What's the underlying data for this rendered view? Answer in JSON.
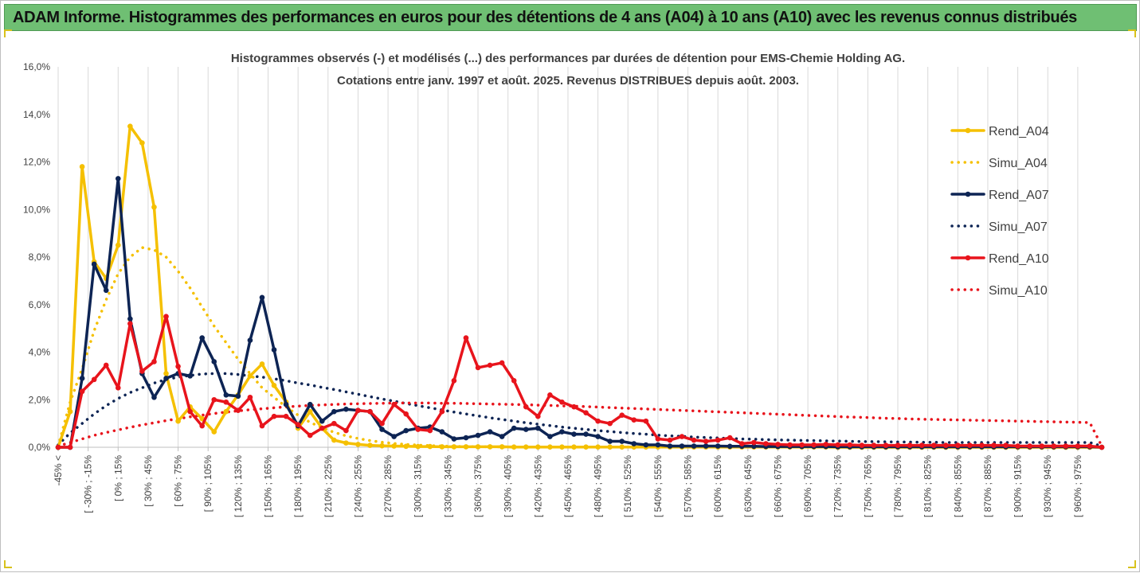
{
  "header": {
    "banner_title": "ADAM Informe. Histogrammes des performances en euros pour des détentions de 4 ans (A04) à 10 ans (A10) avec les revenus connus distribués"
  },
  "chart_data": {
    "type": "line",
    "title_line1": "Histogrammes observés (-)  et modélisés (...) des performances par durées de détention pour EMS-Chemie Holding AG.",
    "title_line2": "Cotations entre janv. 1997 et août. 2025. Revenus DISTRIBUES depuis août. 2003.",
    "ylim": [
      0,
      16
    ],
    "y_ticks": [
      "0,0%",
      "2,0%",
      "4,0%",
      "6,0%",
      "8,0%",
      "10,0%",
      "12,0%",
      "14,0%",
      "16,0%"
    ],
    "grid": "vertical",
    "legend_position": "right",
    "x_tick_labels": [
      "-45% <",
      "[ -30% ; -15%",
      "[ 0% ; 15%",
      "[ 30% ; 45%",
      "[ 60% ; 75%",
      "[ 90% ; 105%",
      "[ 120% ; 135%",
      "[ 150% ; 165%",
      "[ 180% ; 195%",
      "[ 210% ; 225%",
      "[ 240% ; 255%",
      "[ 270% ; 285%",
      "[ 300% ; 315%",
      "[ 330% ; 345%",
      "[ 360% ; 375%",
      "[ 390% ; 405%",
      "[ 420% ; 435%",
      "[ 450% ; 465%",
      "[ 480% ; 495%",
      "[ 510% ; 525%",
      "[ 540% ; 555%",
      "[ 570% ; 585%",
      "[ 600% ; 615%",
      "[ 630% ; 645%",
      "[ 660% ; 675%",
      "[ 690% ; 705%",
      "[ 720% ; 735%",
      "[ 750% ; 765%",
      "[ 780% ; 795%",
      "[ 810% ; 825%",
      "[ 840% ; 855%",
      "[ 870% ; 885%",
      "[ 900% ; 915%",
      "[ 930% ; 945%",
      "[ 960% ; 975%"
    ],
    "series": [
      {
        "name": "Rend_A04",
        "color": "#f5c000",
        "style": "solid",
        "values": [
          0,
          1.5,
          11.8,
          7.8,
          7.1,
          8.5,
          13.5,
          12.8,
          10.1,
          3.1,
          1.1,
          1.7,
          1.2,
          0.65,
          1.5,
          2.2,
          3.0,
          3.5,
          2.6,
          1.9,
          0.8,
          1.5,
          0.8,
          0.3,
          0.18,
          0.12,
          0.08,
          0.06,
          0.05,
          0.04,
          0.03,
          0.03,
          0.02,
          0.02,
          0.02,
          0.02,
          0.02,
          0.02,
          0.01,
          0.01,
          0.01,
          0.01,
          0.01,
          0.01,
          0.01,
          0.01,
          0.01,
          0.01,
          0.01,
          0.01,
          0.01,
          0.01,
          0.01,
          0.01,
          0.01,
          0.01,
          0.01,
          0.01,
          0.01,
          0.01,
          0.01,
          0.01,
          0.01,
          0.01,
          0.01,
          0,
          0,
          0,
          0,
          0,
          0,
          0,
          0,
          0,
          0,
          0,
          0,
          0,
          0,
          0,
          0,
          0,
          0,
          0,
          0,
          0,
          0,
          0
        ]
      },
      {
        "name": "Simu_A04",
        "color": "#f5c000",
        "style": "dotted",
        "values": [
          0.05,
          1.9,
          3.3,
          4.9,
          6.2,
          7.3,
          8.0,
          8.4,
          8.3,
          8.0,
          7.4,
          6.7,
          5.9,
          5.1,
          4.4,
          3.7,
          3.1,
          2.5,
          2.1,
          1.7,
          1.35,
          1.05,
          0.82,
          0.63,
          0.48,
          0.37,
          0.28,
          0.21,
          0.16,
          0.12,
          0.09,
          0.07,
          0.05,
          0.04,
          0.03,
          0.02,
          0.02,
          0.015,
          0.01,
          0.01,
          0.01,
          0.01,
          0.01,
          0.01,
          0.01,
          0.01,
          0.01,
          0.01,
          0.01,
          0.01,
          0.01,
          0.01,
          0.01,
          0.01,
          0.01,
          0.01,
          0.01,
          0.01,
          0.01,
          0.01,
          0.01,
          0.01,
          0.01,
          0.01,
          0.01,
          0,
          0,
          0,
          0,
          0,
          0,
          0,
          0,
          0,
          0,
          0,
          0,
          0,
          0,
          0,
          0,
          0,
          0,
          0,
          0,
          0,
          0,
          0
        ]
      },
      {
        "name": "Rend_A07",
        "color": "#0d2454",
        "style": "solid",
        "values": [
          0,
          0,
          2.9,
          7.7,
          6.6,
          11.3,
          5.4,
          3.1,
          2.1,
          2.9,
          3.1,
          3.0,
          4.6,
          3.6,
          2.2,
          2.15,
          4.5,
          6.3,
          4.1,
          1.8,
          0.9,
          1.8,
          1.1,
          1.5,
          1.6,
          1.55,
          1.5,
          0.75,
          0.45,
          0.7,
          0.8,
          0.85,
          0.65,
          0.35,
          0.4,
          0.5,
          0.65,
          0.45,
          0.8,
          0.75,
          0.8,
          0.45,
          0.65,
          0.55,
          0.55,
          0.45,
          0.25,
          0.25,
          0.15,
          0.1,
          0.1,
          0.05,
          0.05,
          0.05,
          0.05,
          0.05,
          0.04,
          0.04,
          0.04,
          0.03,
          0.03,
          0.03,
          0.03,
          0.03,
          0.03,
          0.02,
          0.02,
          0.02,
          0.02,
          0.02,
          0.02,
          0.02,
          0.02,
          0.02,
          0.02,
          0.02,
          0.02,
          0.02,
          0.02,
          0.02,
          0.02,
          0.02,
          0.02,
          0.02,
          0.02,
          0.02,
          0.02,
          0
        ]
      },
      {
        "name": "Simu_A07",
        "color": "#0d2454",
        "style": "dotted",
        "values": [
          0.1,
          0.6,
          1.0,
          1.4,
          1.75,
          2.05,
          2.3,
          2.5,
          2.7,
          2.85,
          2.95,
          3.02,
          3.08,
          3.1,
          3.1,
          3.06,
          3.0,
          2.95,
          2.88,
          2.8,
          2.7,
          2.62,
          2.52,
          2.43,
          2.33,
          2.23,
          2.13,
          2.03,
          1.94,
          1.84,
          1.75,
          1.66,
          1.57,
          1.48,
          1.4,
          1.32,
          1.24,
          1.17,
          1.1,
          1.03,
          0.97,
          0.91,
          0.85,
          0.8,
          0.75,
          0.7,
          0.66,
          0.62,
          0.58,
          0.55,
          0.51,
          0.48,
          0.46,
          0.43,
          0.41,
          0.39,
          0.37,
          0.35,
          0.34,
          0.32,
          0.31,
          0.3,
          0.29,
          0.28,
          0.27,
          0.26,
          0.25,
          0.24,
          0.24,
          0.23,
          0.22,
          0.22,
          0.21,
          0.21,
          0.2,
          0.2,
          0.2,
          0.2,
          0.2,
          0.2,
          0.2,
          0.2,
          0.2,
          0.2,
          0.2,
          0.2,
          0.2,
          0.05
        ]
      },
      {
        "name": "Rend_A10",
        "color": "#e8141c",
        "style": "solid",
        "values": [
          0,
          0,
          2.35,
          2.85,
          3.45,
          2.5,
          5.2,
          3.2,
          3.6,
          5.5,
          3.4,
          1.5,
          0.9,
          2.0,
          1.9,
          1.55,
          2.1,
          0.9,
          1.3,
          1.3,
          0.95,
          0.5,
          0.8,
          1.0,
          0.7,
          1.55,
          1.5,
          1.0,
          1.8,
          1.4,
          0.75,
          0.7,
          1.5,
          2.8,
          4.6,
          3.35,
          3.45,
          3.55,
          2.8,
          1.7,
          1.3,
          2.2,
          1.9,
          1.7,
          1.45,
          1.1,
          1.0,
          1.35,
          1.15,
          1.1,
          0.35,
          0.3,
          0.45,
          0.3,
          0.25,
          0.3,
          0.4,
          0.15,
          0.2,
          0.15,
          0.12,
          0.1,
          0.1,
          0.1,
          0.12,
          0.1,
          0.1,
          0.08,
          0.08,
          0.08,
          0.08,
          0.08,
          0.08,
          0.08,
          0.08,
          0.08,
          0.08,
          0.08,
          0.08,
          0.08,
          0.05,
          0.05,
          0.05,
          0.05,
          0.05,
          0.05,
          0.05,
          0
        ]
      },
      {
        "name": "Simu_A10",
        "color": "#e8141c",
        "style": "dotted",
        "values": [
          0.05,
          0.2,
          0.35,
          0.5,
          0.62,
          0.73,
          0.84,
          0.94,
          1.03,
          1.12,
          1.2,
          1.28,
          1.35,
          1.42,
          1.48,
          1.53,
          1.58,
          1.62,
          1.66,
          1.7,
          1.73,
          1.76,
          1.78,
          1.8,
          1.82,
          1.83,
          1.84,
          1.85,
          1.86,
          1.86,
          1.86,
          1.86,
          1.85,
          1.85,
          1.84,
          1.83,
          1.82,
          1.81,
          1.8,
          1.79,
          1.77,
          1.76,
          1.74,
          1.73,
          1.71,
          1.69,
          1.67,
          1.65,
          1.63,
          1.61,
          1.59,
          1.57,
          1.55,
          1.53,
          1.51,
          1.49,
          1.47,
          1.45,
          1.43,
          1.41,
          1.39,
          1.37,
          1.35,
          1.33,
          1.31,
          1.29,
          1.27,
          1.26,
          1.24,
          1.22,
          1.21,
          1.19,
          1.18,
          1.17,
          1.16,
          1.15,
          1.14,
          1.13,
          1.12,
          1.11,
          1.1,
          1.09,
          1.08,
          1.07,
          1.06,
          1.05,
          1.04,
          0.05
        ]
      }
    ]
  }
}
